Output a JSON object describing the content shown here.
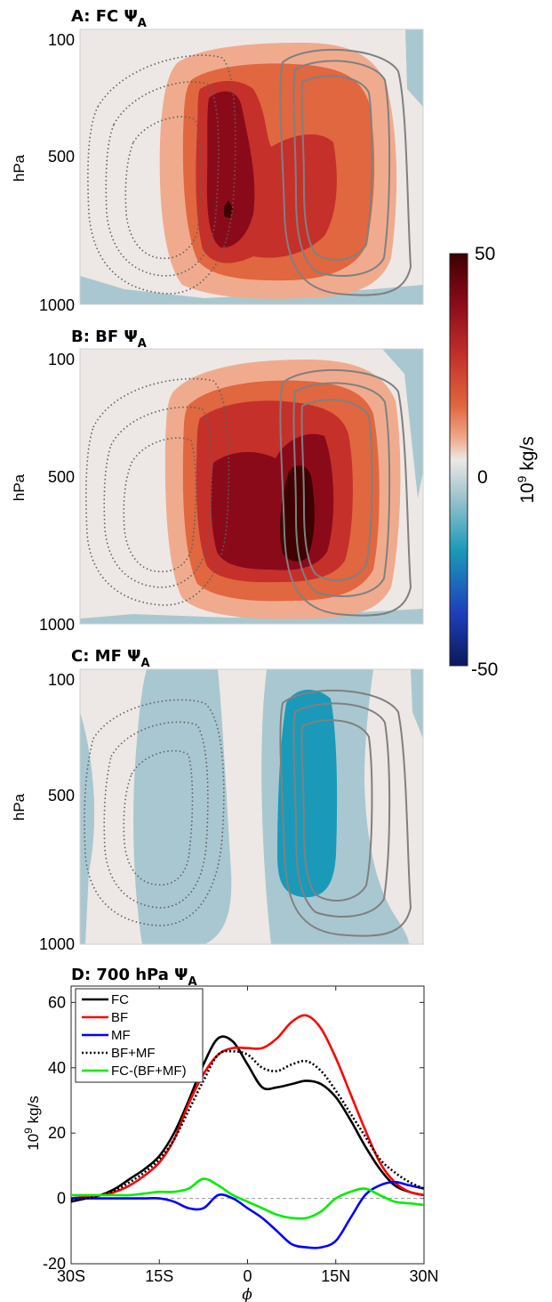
{
  "chart_data": [
    {
      "type": "heatmap",
      "title": "A: FC Ψ_A",
      "title_main": "A: FC Ψ",
      "title_sub": "A",
      "ylabel": "hPa",
      "yticks": [
        "100",
        "500",
        "1000"
      ],
      "colormap": "blue-white-red diverging",
      "peak_value": 50
    },
    {
      "type": "heatmap",
      "title": "B: BF Ψ_A",
      "title_main": "B: BF Ψ",
      "title_sub": "A",
      "ylabel": "hPa",
      "yticks": [
        "100",
        "500",
        "1000"
      ],
      "colormap": "blue-white-red diverging",
      "peak_value": 50
    },
    {
      "type": "heatmap",
      "title": "C: MF Ψ_A",
      "title_main": "C: MF Ψ",
      "title_sub": "A",
      "ylabel": "hPa",
      "yticks": [
        "100",
        "500",
        "1000"
      ],
      "colormap": "blue-white-red diverging",
      "peak_value": -20
    },
    {
      "type": "line",
      "title": "D: 700 hPa Ψ_A",
      "title_main": "D: 700 hPa Ψ",
      "title_sub": "A",
      "xlabel": "ϕ",
      "ylabel_main": "10",
      "ylabel_sup": "9",
      "ylabel_rest": " kg/s",
      "xlim": [
        -30,
        30
      ],
      "ylim": [
        -20,
        65
      ],
      "xticks": [
        {
          "v": -30,
          "label": "30S"
        },
        {
          "v": -15,
          "label": "15S"
        },
        {
          "v": 0,
          "label": "0"
        },
        {
          "v": 15,
          "label": "15N"
        },
        {
          "v": 30,
          "label": "30N"
        }
      ],
      "yticks": [
        {
          "v": -20,
          "label": "-20"
        },
        {
          "v": 0,
          "label": "0"
        },
        {
          "v": 20,
          "label": "20"
        },
        {
          "v": 40,
          "label": "40"
        },
        {
          "v": 60,
          "label": "60"
        }
      ],
      "zero_line": true,
      "legend_position": "top-left",
      "x": [
        -30,
        -27.5,
        -25,
        -22.5,
        -20,
        -17.5,
        -15,
        -12.5,
        -10,
        -7.5,
        -5,
        -2.5,
        0,
        2.5,
        5,
        7.5,
        10,
        12.5,
        15,
        17.5,
        20,
        22.5,
        25,
        27.5,
        30
      ],
      "series": [
        {
          "name": "FC",
          "color": "#000000",
          "dash": "solid",
          "values": [
            -1,
            0,
            1,
            3,
            6,
            9,
            13,
            20,
            30,
            41,
            49,
            48,
            41,
            34,
            34,
            35,
            36,
            35,
            31,
            24,
            16,
            9,
            4,
            2,
            1
          ]
        },
        {
          "name": "BF",
          "color": "#ff0000",
          "dash": "solid",
          "values": [
            0,
            0.5,
            1,
            2,
            4,
            7,
            11,
            18,
            29,
            38,
            44,
            46,
            46,
            46,
            49,
            54,
            56,
            52,
            43,
            32,
            21,
            11,
            5,
            2,
            1
          ]
        },
        {
          "name": "MF",
          "color": "#0000ff",
          "dash": "solid",
          "values": [
            0,
            0,
            0,
            0,
            0,
            0,
            0,
            -1,
            -3,
            -3,
            1,
            0,
            -3,
            -6,
            -10,
            -14,
            -15,
            -15,
            -13,
            -6,
            1,
            4,
            5,
            4,
            3
          ]
        },
        {
          "name": "BF+MF",
          "color": "#000000",
          "dash": "dotted",
          "values": [
            -0.5,
            0,
            1,
            2.5,
            5,
            8,
            12,
            18,
            27,
            36,
            44,
            45,
            44,
            40,
            39,
            41,
            42,
            39,
            33,
            26,
            19,
            12,
            8,
            5,
            3
          ]
        },
        {
          "name": "FC-(BF+MF)",
          "color": "#00ee00",
          "dash": "solid",
          "values": [
            1,
            1,
            1,
            1,
            1,
            1.5,
            2,
            2,
            3,
            6,
            4,
            1,
            -1,
            -3,
            -5,
            -6,
            -6,
            -4,
            0,
            2,
            3,
            1,
            -1,
            -1.5,
            -2
          ]
        }
      ]
    }
  ],
  "colorbar": {
    "top_label": "50",
    "mid_label": "0",
    "bottom_label": "-50",
    "unit_main": "10",
    "unit_sup": "9",
    "unit_rest": " kg/s",
    "colors": [
      "#3e0000",
      "#8b0a1a",
      "#c5302b",
      "#e0673f",
      "#f0ab8e",
      "#ede8e5",
      "#a9c7d0",
      "#1a9ab8",
      "#1f3fbc",
      "#0b1a5a"
    ]
  }
}
